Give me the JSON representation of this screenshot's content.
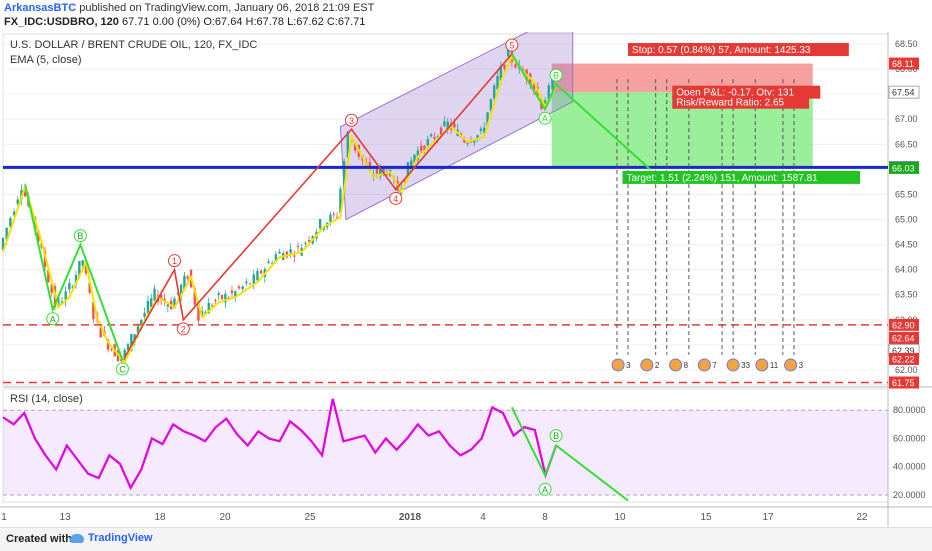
{
  "header": {
    "author": "ArkansasBTC",
    "published": "published on TradingView.com, January 06, 2018 21:09 EST",
    "symbol_line": "FX_IDC:USDBRO, 120",
    "ohlc": "67.71 0.00 (0%) O:67.64 H:67.78 L:67.62 C:67.71"
  },
  "legend": {
    "title": "U.S. DOLLAR / BRENT CRUDE OIL, 120, FX_IDC",
    "ema": "EMA (5, close)",
    "rsi": "RSI (14, close)"
  },
  "footer": {
    "created": "Created with",
    "brand": "TradingView"
  },
  "colors": {
    "up": "#26a69a",
    "down": "#ef5350",
    "impulse": "#e53935",
    "corrective": "#33e033",
    "channel": "#9575cd",
    "hline": "#1a27c9",
    "dash": "#e53935",
    "rsi": "#e000e0"
  },
  "chart_data": [
    {
      "type": "line",
      "title": "U.S. DOLLAR / BRENT CRUDE OIL, 120, FX_IDC",
      "x_ticks": [
        "1",
        "13",
        "18",
        "20",
        "25",
        "2018",
        "4",
        "8",
        "10",
        "15",
        "17",
        "22"
      ],
      "y_ticks": [
        "68.50",
        "68.00",
        "67.50",
        "67.00",
        "66.50",
        "66.00",
        "65.50",
        "65.00",
        "64.50",
        "64.00",
        "63.50",
        "63.00",
        "62.50",
        "62.00"
      ],
      "ylim": [
        61.7,
        68.7
      ],
      "price_labels": [
        {
          "value": 68.11,
          "label": "68.11",
          "color": "#e53935"
        },
        {
          "value": 67.54,
          "label": "67.54",
          "color": "#ffffff"
        },
        {
          "value": 66.04,
          "label": "66.04",
          "color": "#1a27c9"
        },
        {
          "value": 66.03,
          "label": "66.03",
          "color": "#1aa81a"
        },
        {
          "value": 62.9,
          "label": "62.90",
          "color": "#e53935"
        },
        {
          "value": 62.64,
          "label": "62.64",
          "color": "#e53935"
        },
        {
          "value": 62.45,
          "label": "62.45",
          "color": "#e53935"
        },
        {
          "value": 62.39,
          "label": "62.39",
          "color": "#ffffff"
        },
        {
          "value": 62.22,
          "label": "62.22",
          "color": "#e53935"
        },
        {
          "value": 61.75,
          "label": "61.75",
          "color": "#e53935"
        }
      ],
      "hlines": [
        {
          "value": 66.04,
          "style": "solid",
          "color": "#1a27c9"
        },
        {
          "value": 62.9,
          "style": "dashed",
          "color": "#e53935"
        },
        {
          "value": 61.75,
          "style": "dashed",
          "color": "#e53935"
        }
      ],
      "position": {
        "stop_label": "Stop: 0.57 (0.84%) 57, Amount: 1425.33",
        "pnl_label": "Open P&L: -0.17, Qty: 131",
        "rr_label": "Risk/Reward Ratio: 2.65",
        "target_label": "Target: 1.51 (2.24%) 151, Amount: 1587.81",
        "entry": 67.54,
        "stop": 68.11,
        "target": 66.03
      },
      "price_path": [
        {
          "x": 0,
          "y": 64.4
        },
        {
          "x": 2,
          "y": 65.7
        },
        {
          "x": 3.5,
          "y": 64.6
        },
        {
          "x": 5,
          "y": 63.3
        },
        {
          "x": 6,
          "y": 63.5
        },
        {
          "x": 7.5,
          "y": 64.2
        },
        {
          "x": 8.5,
          "y": 63.1
        },
        {
          "x": 9.5,
          "y": 62.6
        },
        {
          "x": 11,
          "y": 62.2
        },
        {
          "x": 12.5,
          "y": 62.9
        },
        {
          "x": 14,
          "y": 63.5
        },
        {
          "x": 15.5,
          "y": 63.3
        },
        {
          "x": 17,
          "y": 63.9
        },
        {
          "x": 18,
          "y": 63.1
        },
        {
          "x": 19.5,
          "y": 63.4
        },
        {
          "x": 21,
          "y": 63.5
        },
        {
          "x": 23,
          "y": 63.8
        },
        {
          "x": 25,
          "y": 64.3
        },
        {
          "x": 27,
          "y": 64.4
        },
        {
          "x": 29,
          "y": 64.9
        },
        {
          "x": 30.5,
          "y": 65.1
        },
        {
          "x": 31.5,
          "y": 66.7
        },
        {
          "x": 32.5,
          "y": 66.3
        },
        {
          "x": 33.5,
          "y": 65.9
        },
        {
          "x": 35,
          "y": 66.0
        },
        {
          "x": 36,
          "y": 65.6
        },
        {
          "x": 37.5,
          "y": 66.3
        },
        {
          "x": 39,
          "y": 66.6
        },
        {
          "x": 40.5,
          "y": 66.9
        },
        {
          "x": 42,
          "y": 66.6
        },
        {
          "x": 43.5,
          "y": 66.7
        },
        {
          "x": 45,
          "y": 67.8
        },
        {
          "x": 46,
          "y": 68.3
        },
        {
          "x": 47,
          "y": 68.0
        },
        {
          "x": 48,
          "y": 67.8
        },
        {
          "x": 49,
          "y": 67.3
        },
        {
          "x": 50,
          "y": 67.7
        }
      ],
      "waves": [
        {
          "label": "1",
          "x": 15.5,
          "y": 64.0,
          "color": "#e53935"
        },
        {
          "label": "2",
          "x": 16.3,
          "y": 63.0,
          "color": "#e53935"
        },
        {
          "label": "3",
          "x": 31.5,
          "y": 66.8,
          "color": "#e53935"
        },
        {
          "label": "4",
          "x": 35.5,
          "y": 65.6,
          "color": "#e53935"
        },
        {
          "label": "5",
          "x": 46,
          "y": 68.3,
          "color": "#e53935"
        },
        {
          "label": "A",
          "x": 49,
          "y": 67.2,
          "color": "#33e033"
        },
        {
          "label": "B",
          "x": 50,
          "y": 67.7,
          "color": "#33e033"
        }
      ],
      "event_counts": [
        "3",
        "2",
        "8",
        "7",
        "33",
        "11",
        "3"
      ]
    },
    {
      "type": "line",
      "title": "RSI (14, close)",
      "y_ticks": [
        "80.0000",
        "60.0000",
        "40.0000",
        "20.0000"
      ],
      "ylim": [
        15,
        95
      ],
      "series": [
        {
          "name": "RSI (14, close)",
          "values": [
            75,
            70,
            78,
            60,
            48,
            38,
            55,
            45,
            35,
            32,
            48,
            42,
            25,
            38,
            60,
            56,
            70,
            65,
            62,
            58,
            68,
            74,
            63,
            55,
            65,
            60,
            58,
            72,
            66,
            58,
            48,
            88,
            58,
            60,
            62,
            50,
            60,
            52,
            60,
            70,
            62,
            65,
            55,
            48,
            52,
            60,
            82,
            78,
            62,
            68,
            66,
            34,
            55
          ]
        }
      ],
      "levels": [
        80,
        20
      ]
    }
  ]
}
